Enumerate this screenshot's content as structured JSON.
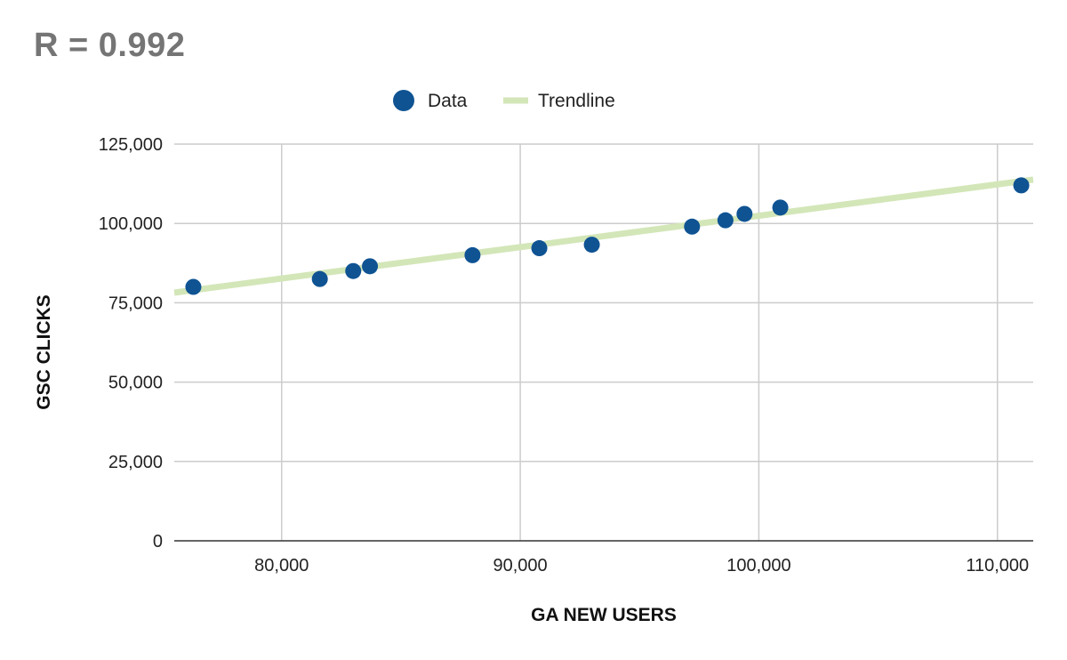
{
  "chart_data": {
    "type": "scatter",
    "title": "R = 0.992",
    "xlabel": "GA NEW USERS",
    "ylabel": "GSC CLICKS",
    "xlim": [
      75500,
      111500
    ],
    "ylim": [
      0,
      125000
    ],
    "x_ticks": [
      80000,
      90000,
      100000,
      110000
    ],
    "x_tick_labels": [
      "80,000",
      "90,000",
      "100,000",
      "110,000"
    ],
    "y_ticks": [
      0,
      25000,
      50000,
      75000,
      100000,
      125000
    ],
    "y_tick_labels": [
      "0",
      "25,000",
      "50,000",
      "75,000",
      "100,000",
      "125,000"
    ],
    "grid": true,
    "legend": {
      "position": "top",
      "entries": [
        "Data",
        "Trendline"
      ]
    },
    "series": [
      {
        "name": "Data",
        "color": "#0f5393",
        "x": [
          76300,
          81600,
          83000,
          83700,
          88000,
          90800,
          93000,
          97200,
          98600,
          99400,
          100900,
          111000
        ],
        "y": [
          80000,
          82500,
          85000,
          86500,
          90000,
          92200,
          93300,
          99000,
          101000,
          103000,
          105000,
          112000
        ]
      },
      {
        "name": "Trendline",
        "color": "#d3e6b8",
        "x": [
          75500,
          111500
        ],
        "y": [
          78200,
          113800
        ]
      }
    ]
  }
}
